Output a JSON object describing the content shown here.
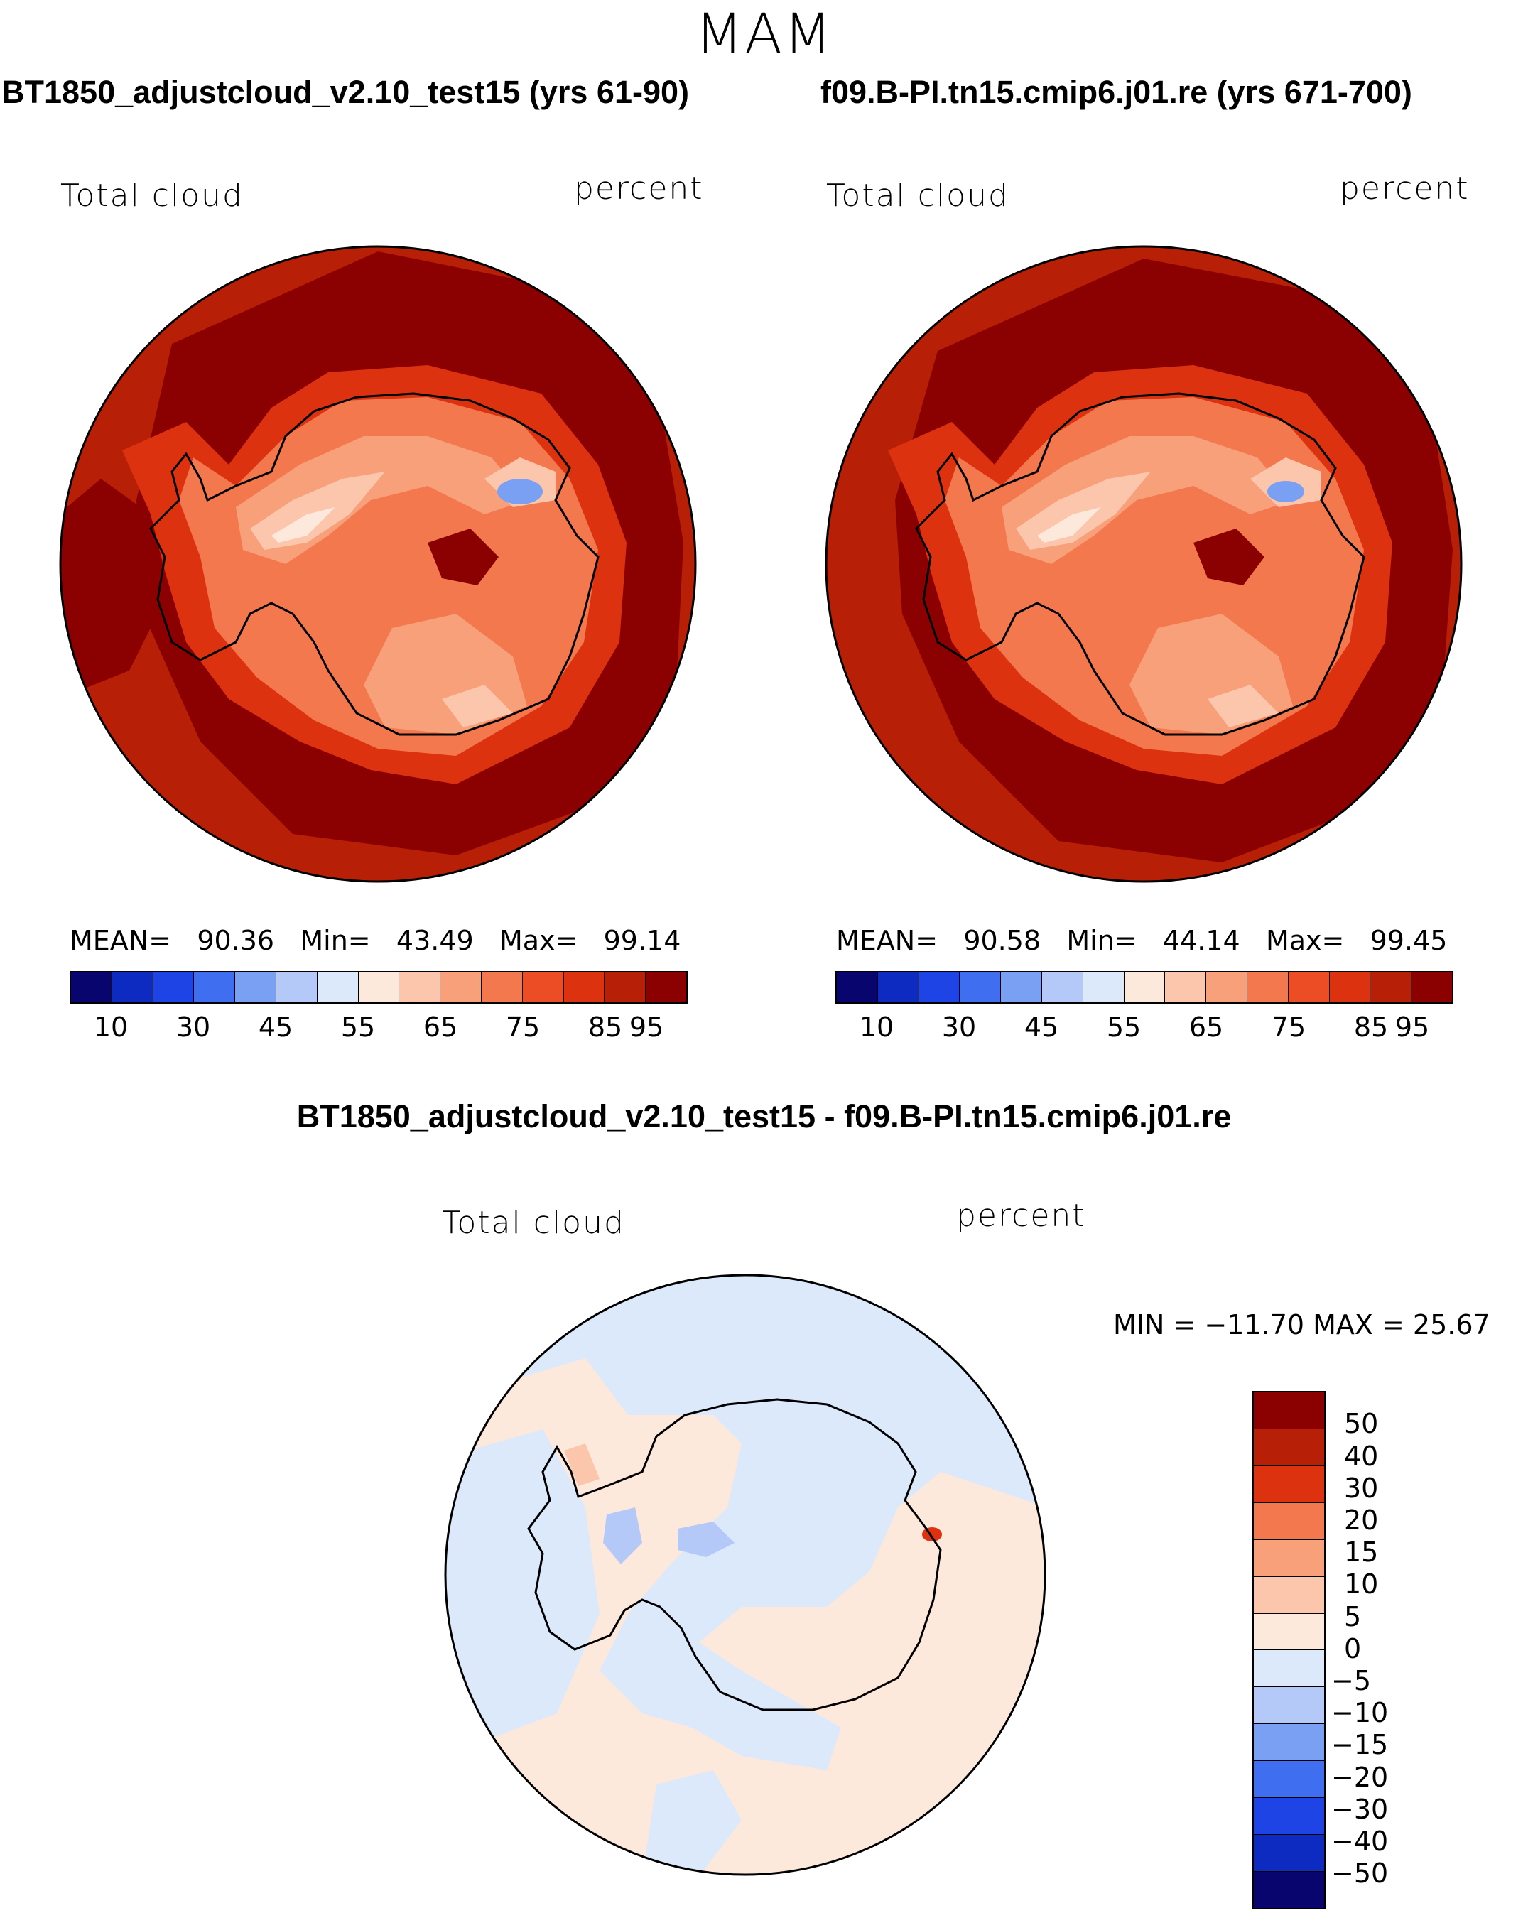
{
  "figure": {
    "season": "MAM",
    "diff_title": "BT1850_adjustcloud_v2.10_test15 - f09.B-PI.tn15.cmip6.j01.re"
  },
  "panels": [
    {
      "case_title": "BT1850_adjustcloud_v2.10_test15 (yrs 61-90)",
      "variable": "Total cloud",
      "units": "percent",
      "stats": {
        "mean_label": "MEAN=",
        "mean": "90.36",
        "min_label": "Min=",
        "min": "43.49",
        "max_label": "Max=",
        "max": "99.14"
      }
    },
    {
      "case_title": "f09.B-PI.tn15.cmip6.j01.re (yrs 671-700)",
      "variable": "Total cloud",
      "units": "percent",
      "stats": {
        "mean_label": "MEAN=",
        "mean": "90.58",
        "min_label": "Min=",
        "min": "44.14",
        "max_label": "Max=",
        "max": "99.45"
      }
    }
  ],
  "diff_panel": {
    "variable": "Total cloud",
    "units": "percent",
    "min_max_text": "MIN = −11.70 MAX =   25.67"
  },
  "colorbar_main": {
    "colors": [
      "#08066e",
      "#0d2bc0",
      "#1f44e6",
      "#3f6ff0",
      "#7aa0f4",
      "#b4c9f7",
      "#dce9fb",
      "#fde8dc",
      "#fbc6ac",
      "#f7a07a",
      "#f3784e",
      "#ec4d24",
      "#dc3210",
      "#b71f07",
      "#8b0102"
    ],
    "tick_labels": [
      "10",
      "30",
      "45",
      "55",
      "65",
      "75",
      "85",
      "95"
    ]
  },
  "colorbar_diff": {
    "colors": [
      "#8b0102",
      "#b71f07",
      "#dc3210",
      "#f3784e",
      "#f7a07a",
      "#fbc6ac",
      "#fde8dc",
      "#dce9fb",
      "#b4c9f7",
      "#7aa0f4",
      "#3f6ff0",
      "#1f44e6",
      "#0d2bc0",
      "#08066e"
    ],
    "tick_labels": [
      "50",
      "40",
      "30",
      "20",
      "15",
      "10",
      "5",
      "0",
      "−5",
      "−10",
      "−15",
      "−20",
      "−30",
      "−40",
      "−50"
    ]
  },
  "map_colors": {
    "ocean_main": "#b71f07",
    "ocean_high": "#8b0102",
    "coast_ring": "#dc3210",
    "land_mid": "#f3784e",
    "land_light": "#f7a07a",
    "land_pale": "#fbc6ac",
    "land_white": "#fde8dc",
    "land_blue": "#7aa0f4",
    "diff_pos": "#fde8dc",
    "diff_neg": "#dce9fb",
    "diff_neg2": "#b4c9f7",
    "diff_pos2": "#fbc6ac",
    "diff_hot": "#dc3210",
    "coastline": "#000000"
  }
}
